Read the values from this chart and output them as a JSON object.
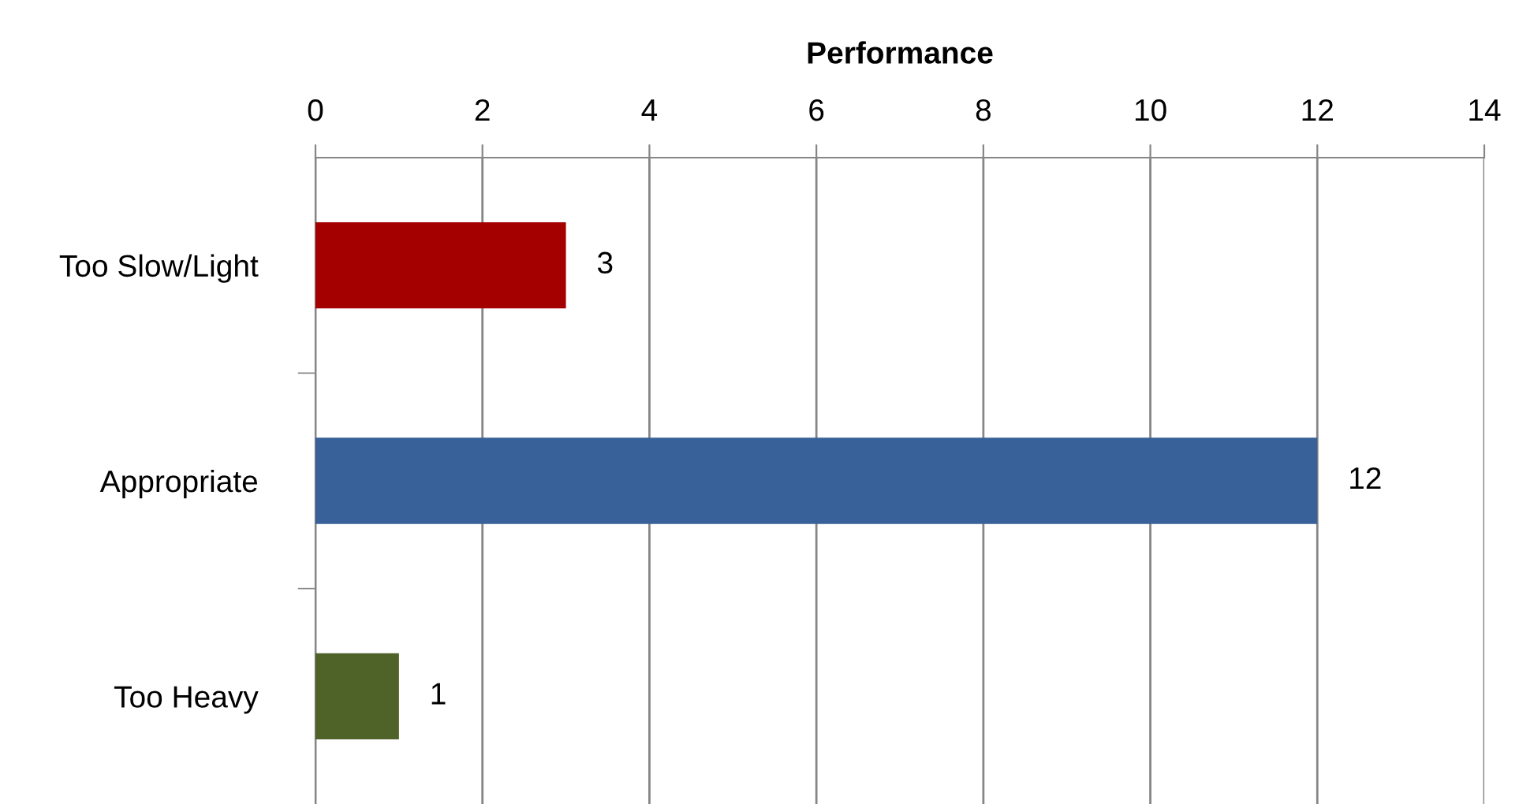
{
  "chart_data": {
    "type": "bar",
    "orientation": "horizontal",
    "title": "Performance",
    "categories": [
      "Too Slow/Light",
      "Appropriate",
      "Too Heavy"
    ],
    "values": [
      3,
      12,
      1
    ],
    "colors": [
      "#a50000",
      "#386099",
      "#4f6228"
    ],
    "xlim": [
      0,
      14
    ],
    "xticks": [
      0,
      2,
      4,
      6,
      8,
      10,
      12,
      14
    ],
    "grid": "x",
    "data_labels": true,
    "legend": false
  }
}
